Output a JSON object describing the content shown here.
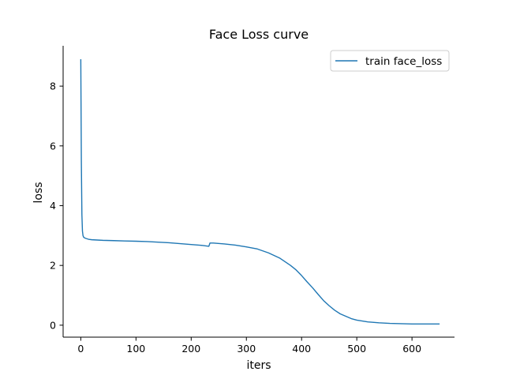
{
  "chart_data": {
    "type": "line",
    "title": "Face Loss curve",
    "xlabel": "iters",
    "ylabel": "loss",
    "xlim": [
      -32,
      677
    ],
    "ylim": [
      -0.4,
      9.35
    ],
    "xticks": [
      0,
      100,
      200,
      300,
      400,
      500,
      600
    ],
    "yticks": [
      0,
      2,
      4,
      6,
      8
    ],
    "grid": false,
    "legend_position": "top-right",
    "series": [
      {
        "name": "train face_loss",
        "color": "#1f77b4",
        "x": [
          0,
          1,
          2,
          3,
          4,
          5,
          7,
          10,
          15,
          20,
          30,
          40,
          60,
          80,
          100,
          120,
          140,
          160,
          180,
          200,
          220,
          232,
          234,
          240,
          260,
          280,
          300,
          320,
          340,
          360,
          380,
          390,
          400,
          410,
          420,
          430,
          440,
          450,
          460,
          470,
          480,
          490,
          500,
          520,
          540,
          560,
          580,
          600,
          620,
          650
        ],
        "y": [
          8.9,
          5.5,
          3.7,
          3.15,
          3.0,
          2.95,
          2.92,
          2.9,
          2.87,
          2.86,
          2.85,
          2.84,
          2.83,
          2.82,
          2.81,
          2.8,
          2.78,
          2.76,
          2.73,
          2.7,
          2.67,
          2.64,
          2.75,
          2.75,
          2.72,
          2.68,
          2.62,
          2.55,
          2.42,
          2.25,
          2.0,
          1.85,
          1.66,
          1.45,
          1.25,
          1.03,
          0.82,
          0.65,
          0.5,
          0.38,
          0.3,
          0.22,
          0.17,
          0.11,
          0.08,
          0.06,
          0.05,
          0.04,
          0.04,
          0.04
        ]
      }
    ]
  }
}
